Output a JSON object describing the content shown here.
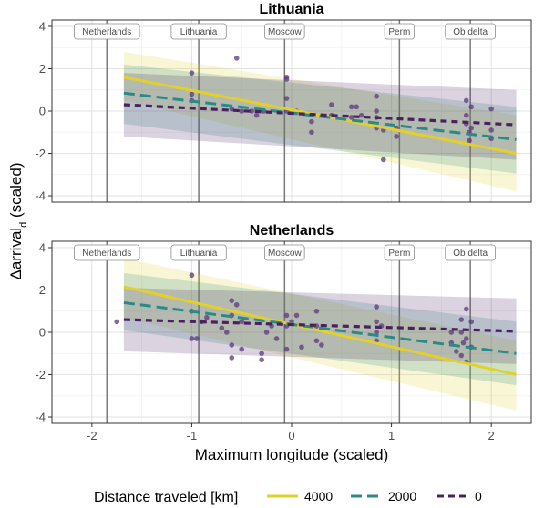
{
  "chart_data": {
    "type": "line",
    "xlabel": "Maximum longitude (scaled)",
    "ylabel_main": "Δarrival",
    "ylabel_sub": "d",
    "ylabel_suffix": " (scaled)",
    "xlim": [
      -2.4,
      2.4
    ],
    "ylim": [
      -4.3,
      4.3
    ],
    "x_ticks": [
      -2,
      -1,
      0,
      1,
      2
    ],
    "y_ticks": [
      -4,
      -2,
      0,
      2,
      4
    ],
    "locations": [
      {
        "name": "Netherlands",
        "x": -1.85
      },
      {
        "name": "Lithuania",
        "x": -0.93
      },
      {
        "name": "Moscow",
        "x": -0.07
      },
      {
        "name": "Perm",
        "x": 1.08
      },
      {
        "name": "Ob delta",
        "x": 1.79
      }
    ],
    "legend": {
      "title": "Distance traveled [km]",
      "entries": [
        "4000",
        "2000",
        "0"
      ]
    },
    "series_colors": [
      "#E3D02B",
      "#2A8A87",
      "#4A2160"
    ],
    "points_color": "#5B3A7A",
    "panels": [
      {
        "title": "Lithuania",
        "series": [
          {
            "name": "4000",
            "line": [
              [
                -1.68,
                1.6
              ],
              [
                2.25,
                -2.0
              ]
            ],
            "band_upper": [
              [
                -1.68,
                2.8
              ],
              [
                2.25,
                -0.2
              ]
            ],
            "band_lower": [
              [
                -1.68,
                0.5
              ],
              [
                2.25,
                -3.8
              ]
            ]
          },
          {
            "name": "2000",
            "line": [
              [
                -1.68,
                0.85
              ],
              [
                2.25,
                -1.35
              ]
            ],
            "band_upper": [
              [
                -1.68,
                2.2
              ],
              [
                2.25,
                0.2
              ]
            ],
            "band_lower": [
              [
                -1.68,
                -0.6
              ],
              [
                2.25,
                -2.95
              ]
            ]
          },
          {
            "name": "0",
            "line": [
              [
                -1.68,
                0.3
              ],
              [
                2.25,
                -0.65
              ]
            ],
            "band_upper": [
              [
                -1.68,
                1.8
              ],
              [
                2.25,
                1.0
              ]
            ],
            "band_lower": [
              [
                -1.68,
                -1.2
              ],
              [
                2.25,
                -2.3
              ]
            ]
          }
        ],
        "points": [
          [
            -1.0,
            1.8
          ],
          [
            -1.0,
            0.5
          ],
          [
            -1.0,
            0.8
          ],
          [
            -0.6,
            0.1
          ],
          [
            -0.55,
            2.5
          ],
          [
            -0.5,
            0.0
          ],
          [
            -0.4,
            0.0
          ],
          [
            -0.35,
            -0.2
          ],
          [
            -0.28,
            0.0
          ],
          [
            -0.05,
            1.6
          ],
          [
            -0.05,
            1.5
          ],
          [
            -0.05,
            0.6
          ],
          [
            -0.05,
            0.0
          ],
          [
            0.05,
            0.0
          ],
          [
            0.2,
            -0.5
          ],
          [
            0.2,
            -1.0
          ],
          [
            0.4,
            0.3
          ],
          [
            0.4,
            -0.2
          ],
          [
            0.6,
            0.2
          ],
          [
            0.6,
            -0.3
          ],
          [
            0.65,
            0.2
          ],
          [
            0.7,
            -0.2
          ],
          [
            0.85,
            0.0
          ],
          [
            0.85,
            -0.8
          ],
          [
            0.85,
            0.7
          ],
          [
            0.85,
            -0.3
          ],
          [
            0.92,
            -0.9
          ],
          [
            0.92,
            -2.3
          ],
          [
            1.05,
            -0.8
          ],
          [
            1.05,
            -1.2
          ],
          [
            1.75,
            0.5
          ],
          [
            1.75,
            -0.2
          ],
          [
            1.75,
            -0.6
          ],
          [
            1.78,
            -1.0
          ],
          [
            1.78,
            -1.4
          ],
          [
            1.8,
            0.2
          ],
          [
            1.8,
            -0.8
          ],
          [
            2.0,
            0.1
          ],
          [
            2.0,
            -0.9
          ],
          [
            2.0,
            -1.3
          ]
        ]
      },
      {
        "title": "Netherlands",
        "series": [
          {
            "name": "4000",
            "line": [
              [
                -1.68,
                2.15
              ],
              [
                2.25,
                -2.0
              ]
            ],
            "band_upper": [
              [
                -1.68,
                3.5
              ],
              [
                2.25,
                -0.4
              ]
            ],
            "band_lower": [
              [
                -1.68,
                0.7
              ],
              [
                2.25,
                -3.7
              ]
            ]
          },
          {
            "name": "2000",
            "line": [
              [
                -1.68,
                1.4
              ],
              [
                2.25,
                -1.0
              ]
            ],
            "band_upper": [
              [
                -1.68,
                2.8
              ],
              [
                2.25,
                0.5
              ]
            ],
            "band_lower": [
              [
                -1.68,
                0.1
              ],
              [
                2.25,
                -2.5
              ]
            ]
          },
          {
            "name": "0",
            "line": [
              [
                -1.68,
                0.6
              ],
              [
                2.25,
                0.05
              ]
            ],
            "band_upper": [
              [
                -1.68,
                2.1
              ],
              [
                2.25,
                1.6
              ]
            ],
            "band_lower": [
              [
                -1.68,
                -0.9
              ],
              [
                2.25,
                -1.5
              ]
            ]
          }
        ],
        "points": [
          [
            -1.75,
            0.5
          ],
          [
            -1.0,
            2.7
          ],
          [
            -1.0,
            -0.3
          ],
          [
            -1.0,
            1.0
          ],
          [
            -0.95,
            -0.3
          ],
          [
            -0.9,
            0.5
          ],
          [
            -0.85,
            0.7
          ],
          [
            -0.7,
            0.2
          ],
          [
            -0.65,
            0.0
          ],
          [
            -0.6,
            1.5
          ],
          [
            -0.6,
            0.8
          ],
          [
            -0.6,
            -1.2
          ],
          [
            -0.6,
            -0.6
          ],
          [
            -0.55,
            1.3
          ],
          [
            -0.5,
            0.5
          ],
          [
            -0.5,
            -0.8
          ],
          [
            -0.3,
            -1.0
          ],
          [
            -0.3,
            -1.3
          ],
          [
            -0.25,
            0.0
          ],
          [
            -0.2,
            0.3
          ],
          [
            -0.15,
            -0.3
          ],
          [
            -0.05,
            0.8
          ],
          [
            -0.05,
            0.3
          ],
          [
            -0.05,
            -0.8
          ],
          [
            0.0,
            0.5
          ],
          [
            0.05,
            0.8
          ],
          [
            0.1,
            -0.7
          ],
          [
            0.25,
            1.0
          ],
          [
            0.25,
            0.3
          ],
          [
            0.25,
            -0.4
          ],
          [
            0.3,
            -0.6
          ],
          [
            0.85,
            1.2
          ],
          [
            0.85,
            0.5
          ],
          [
            0.85,
            0.0
          ],
          [
            0.85,
            -0.4
          ],
          [
            0.9,
            0.3
          ],
          [
            1.6,
            0.0
          ],
          [
            1.6,
            -0.5
          ],
          [
            1.65,
            -0.9
          ],
          [
            1.7,
            0.6
          ],
          [
            1.7,
            0.0
          ],
          [
            1.75,
            1.1
          ],
          [
            1.75,
            -0.3
          ],
          [
            1.75,
            -1.4
          ],
          [
            1.8,
            0.5
          ],
          [
            1.8,
            -0.7
          ],
          [
            1.7,
            -1.1
          ],
          [
            1.72,
            -0.5
          ]
        ]
      }
    ]
  }
}
